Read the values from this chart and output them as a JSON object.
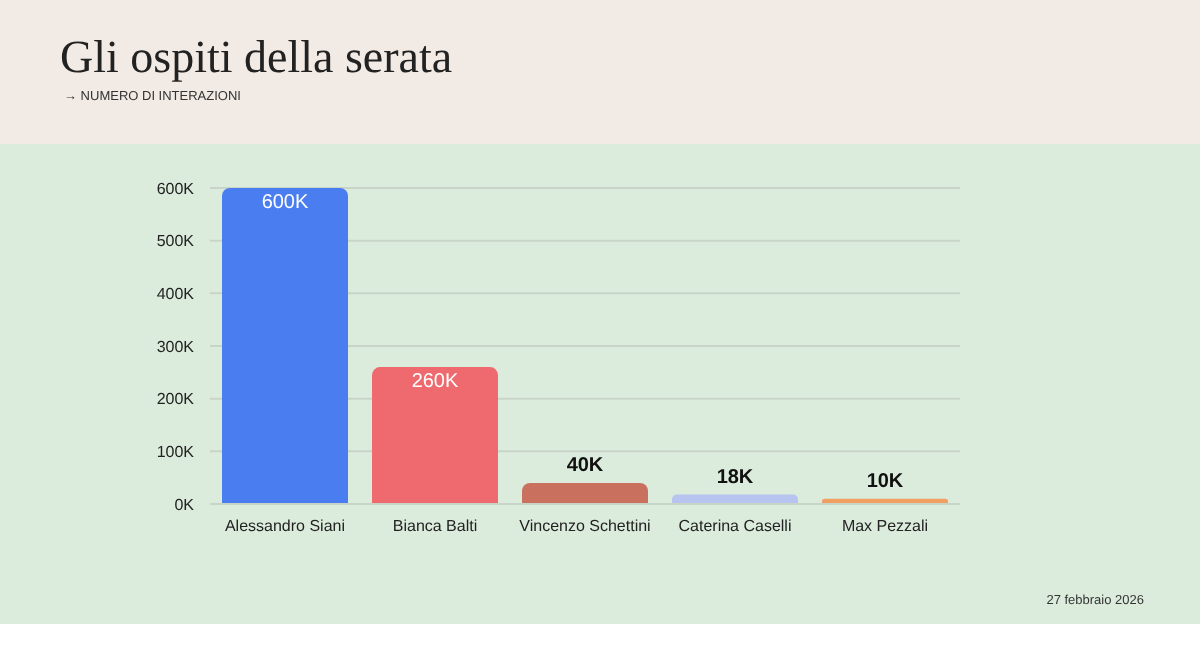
{
  "chart_data": {
    "type": "bar",
    "title": "Gli ospiti della serata",
    "subtitle": "→ NUMERO DI INTERAZIONI",
    "categories": [
      "Alessandro Siani",
      "Bianca Balti",
      "Vincenzo Schettini",
      "Caterina Caselli",
      "Max Pezzali"
    ],
    "values": [
      600000,
      260000,
      40000,
      18000,
      10000
    ],
    "colors": [
      "#4a7ef0",
      "#ef6a6e",
      "#c9705f",
      "#b8c4f0",
      "#f0a060"
    ],
    "value_labels": [
      "600K",
      "260K",
      "40K",
      "18K",
      "10K"
    ],
    "ylim": [
      0,
      600000
    ],
    "yticks": [
      {
        "value": 0,
        "label": "0K"
      },
      {
        "value": 100000,
        "label": "100K"
      },
      {
        "value": 200000,
        "label": "200K"
      },
      {
        "value": 300000,
        "label": "300K"
      },
      {
        "value": 400000,
        "label": "400K"
      },
      {
        "value": 500000,
        "label": "500K"
      },
      {
        "value": 600000,
        "label": "600K"
      }
    ],
    "grid": "y",
    "annotations": [
      "27 febbraio 2026"
    ]
  }
}
